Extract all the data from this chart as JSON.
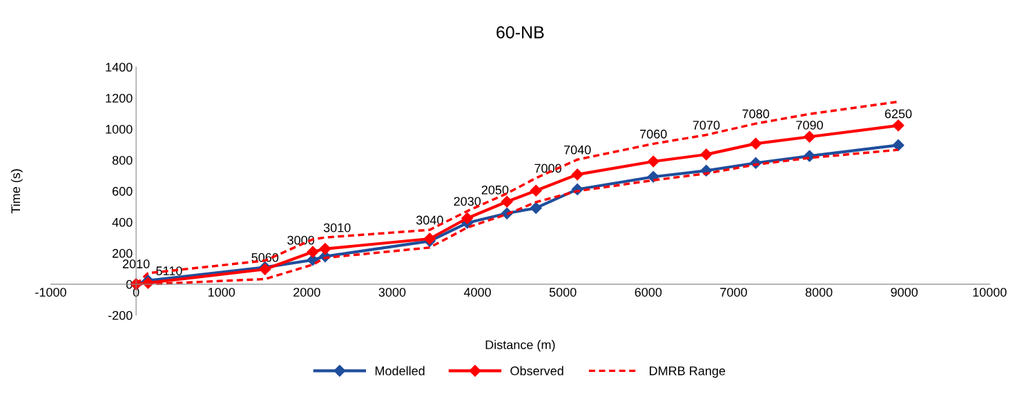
{
  "chart_data": {
    "type": "line",
    "title": "60-NB",
    "xlabel": "Distance (m)",
    "ylabel": "Time (s)",
    "xlim": [
      -1000,
      10000
    ],
    "xticks": [
      -1000,
      0,
      1000,
      2000,
      3000,
      4000,
      5000,
      6000,
      7000,
      8000,
      9000,
      10000
    ],
    "ylim": [
      -200,
      1400
    ],
    "yticks": [
      -200,
      0,
      200,
      400,
      600,
      800,
      1000,
      1200,
      1400
    ],
    "annotations": [
      {
        "text": "2010",
        "x": 0,
        "y": 0
      },
      {
        "text": "5110",
        "x": 140,
        "y": 8
      },
      {
        "text": "5060",
        "x": 1510,
        "y": 96
      },
      {
        "text": "3000",
        "x": 2070,
        "y": 208
      },
      {
        "text": "3010",
        "x": 2215,
        "y": 228
      },
      {
        "text": "3040",
        "x": 3440,
        "y": 293
      },
      {
        "text": "2030",
        "x": 3880,
        "y": 425
      },
      {
        "text": "2050",
        "x": 4345,
        "y": 532
      },
      {
        "text": "7000",
        "x": 4685,
        "y": 603
      },
      {
        "text": "7040",
        "x": 5170,
        "y": 707
      },
      {
        "text": "7060",
        "x": 6060,
        "y": 791
      },
      {
        "text": "7070",
        "x": 6680,
        "y": 836
      },
      {
        "text": "7080",
        "x": 7260,
        "y": 906
      },
      {
        "text": "7090",
        "x": 7890,
        "y": 950
      },
      {
        "text": "6250",
        "x": 8930,
        "y": 1023
      }
    ],
    "grid": false,
    "legend": "bottom",
    "marker": "diamond",
    "series": [
      {
        "name": "Modelled",
        "color": "#1f4e9c",
        "line_style": "solid",
        "x": [
          0,
          140,
          1510,
          2070,
          2215,
          3440,
          3880,
          4345,
          4685,
          5170,
          6060,
          6680,
          7260,
          7890,
          8930
        ],
        "values": [
          0,
          23,
          109,
          156,
          179,
          278,
          395,
          456,
          491,
          611,
          692,
          732,
          781,
          826,
          896
        ]
      },
      {
        "name": "Observed",
        "color": "#ff0000",
        "line_style": "solid",
        "x": [
          0,
          140,
          1510,
          2070,
          2215,
          3440,
          3880,
          4345,
          4685,
          5170,
          6060,
          6680,
          7260,
          7890,
          8930
        ],
        "values": [
          0,
          8,
          96,
          208,
          228,
          293,
          425,
          532,
          603,
          707,
          791,
          836,
          906,
          950,
          1023
        ]
      },
      {
        "name": "DMRB Range",
        "color": "#ff0000",
        "line_style": "dashed",
        "marker": "none",
        "x": [
          0,
          140,
          1510,
          2070,
          2215,
          3440,
          3880,
          4345,
          4685,
          5170,
          6060,
          6680,
          7260,
          7890,
          8930
        ],
        "values": [
          0,
          71,
          152,
          289,
          301,
          350,
          471,
          585,
          684,
          803,
          905,
          962,
          1035,
          1097,
          1176
        ]
      },
      {
        "color": "#ff0000",
        "line_style": "dashed",
        "marker": "none",
        "x": [
          0,
          140,
          1510,
          2070,
          2215,
          3440,
          3880,
          4345,
          4685,
          5170,
          6060,
          6680,
          7260,
          7890,
          8930
        ],
        "values": [
          0,
          0,
          33,
          126,
          170,
          236,
          365,
          451,
          529,
          600,
          670,
          713,
          771,
          814,
          866
        ]
      }
    ]
  }
}
